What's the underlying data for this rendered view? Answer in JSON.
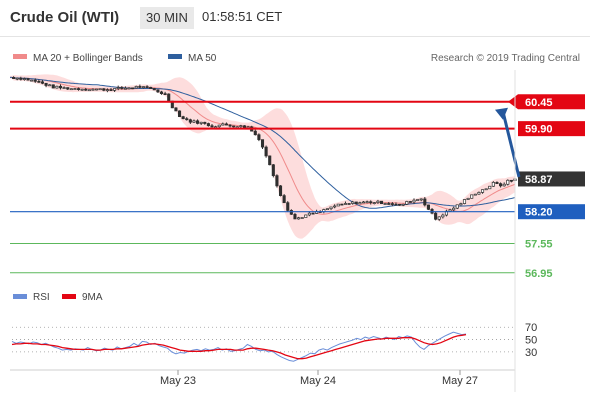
{
  "header": {
    "title": "Crude Oil (WTI)",
    "timeframe": "30 MIN",
    "time": "01:58:51 CET"
  },
  "legend": {
    "bb_label": "MA 20 + Bollinger Bands",
    "ma50_label": "MA 50",
    "source": "Research © 2019 Trading Central",
    "rsi_label": "RSI",
    "rsi_ma_label": "9MA"
  },
  "colors": {
    "candle": "#2f2f2f",
    "bollinger_fill": "#fdd9d9",
    "ma20": "#f08a8a",
    "ma50": "#2e5f9e",
    "resistance": "#e30613",
    "pivot": "#1f5fbf",
    "support": "#5cb85c",
    "current": "#333333",
    "arrow": "#24579c",
    "rsi": "#6a8ed8",
    "rsi_ma": "#e30613"
  },
  "chart_data": [
    {
      "type": "candlestick",
      "x_ticks": [
        "May 23",
        "May 24",
        "May 27"
      ],
      "ylim": [
        56.7,
        61.1
      ],
      "series": [
        {
          "name": "MA 20 + Bollinger Bands"
        },
        {
          "name": "MA 50"
        }
      ],
      "price_path": [
        [
          0,
          60.95
        ],
        [
          8,
          60.92
        ],
        [
          16,
          60.85
        ],
        [
          24,
          60.75
        ],
        [
          34,
          60.72
        ],
        [
          44,
          60.71
        ],
        [
          54,
          60.7
        ],
        [
          64,
          60.73
        ],
        [
          72,
          60.76
        ],
        [
          80,
          60.69
        ],
        [
          86,
          60.6
        ],
        [
          90,
          60.35
        ],
        [
          95,
          60.12
        ],
        [
          100,
          60.05
        ],
        [
          106,
          60.02
        ],
        [
          112,
          59.95
        ],
        [
          118,
          59.98
        ],
        [
          124,
          59.96
        ],
        [
          132,
          59.93
        ],
        [
          138,
          59.7
        ],
        [
          142,
          59.35
        ],
        [
          146,
          58.95
        ],
        [
          150,
          58.55
        ],
        [
          154,
          58.25
        ],
        [
          158,
          58.05
        ],
        [
          162,
          58.1
        ],
        [
          166,
          58.15
        ],
        [
          172,
          58.2
        ],
        [
          180,
          58.32
        ],
        [
          190,
          58.38
        ],
        [
          200,
          58.4
        ],
        [
          210,
          58.38
        ],
        [
          216,
          58.33
        ],
        [
          222,
          58.42
        ],
        [
          228,
          58.47
        ],
        [
          232,
          58.25
        ],
        [
          236,
          58.05
        ],
        [
          240,
          58.15
        ],
        [
          246,
          58.28
        ],
        [
          252,
          58.43
        ],
        [
          258,
          58.58
        ],
        [
          264,
          58.68
        ],
        [
          268,
          58.78
        ],
        [
          272,
          58.74
        ],
        [
          276,
          58.82
        ],
        [
          280,
          58.87
        ]
      ],
      "key_levels": [
        {
          "label": "60.45",
          "value": 60.45,
          "kind": "resistance"
        },
        {
          "label": "59.90",
          "value": 59.9,
          "kind": "resistance"
        },
        {
          "label": "58.87",
          "value": 58.87,
          "kind": "last"
        },
        {
          "label": "58.20",
          "value": 58.2,
          "kind": "pivot"
        },
        {
          "label": "57.55",
          "value": 57.55,
          "kind": "support"
        },
        {
          "label": "56.95",
          "value": 56.95,
          "kind": "support"
        }
      ]
    },
    {
      "type": "line",
      "y_ticks": [
        70,
        50,
        30
      ],
      "ylim": [
        12,
        85
      ],
      "series": [
        {
          "name": "RSI",
          "values": [
            47,
            44,
            46,
            45,
            43,
            46,
            45,
            42,
            44,
            41,
            38,
            36,
            33,
            34,
            33,
            35,
            34,
            33,
            37,
            34,
            32,
            33,
            36,
            34,
            33,
            38,
            35,
            37,
            39,
            44,
            40,
            47,
            46,
            42,
            44,
            40,
            38,
            36,
            30,
            27,
            29,
            28,
            31,
            33,
            34,
            32,
            35,
            33,
            34,
            37,
            33,
            35,
            31,
            32,
            34,
            36,
            42,
            39,
            34,
            32,
            33,
            30,
            31,
            26,
            22,
            19,
            16,
            15,
            18,
            21,
            24,
            28,
            27,
            33,
            35,
            33,
            37,
            40,
            43,
            45,
            47,
            49,
            52,
            50,
            54,
            52,
            55,
            53,
            51,
            54,
            52,
            50,
            55,
            53,
            56,
            54,
            45,
            38,
            34,
            40,
            44,
            48,
            52,
            56,
            59,
            62,
            60,
            58,
            59
          ]
        },
        {
          "name": "9MA",
          "values": [
            42,
            43,
            43,
            44,
            44,
            43,
            43,
            42,
            42,
            41,
            40,
            39,
            37,
            36,
            35,
            34,
            34,
            34,
            34,
            34,
            33,
            33,
            34,
            34,
            34,
            35,
            35,
            36,
            37,
            38,
            39,
            41,
            42,
            43,
            43,
            42,
            41,
            39,
            37,
            35,
            33,
            32,
            31,
            31,
            31,
            31,
            32,
            32,
            33,
            34,
            34,
            34,
            34,
            33,
            33,
            33,
            35,
            36,
            36,
            35,
            34,
            33,
            32,
            30,
            28,
            25,
            23,
            21,
            19,
            19,
            20,
            22,
            24,
            26,
            28,
            30,
            32,
            34,
            36,
            38,
            40,
            42,
            44,
            46,
            48,
            49,
            50,
            51,
            51,
            52,
            52,
            52,
            52,
            53,
            53,
            53,
            51,
            48,
            45,
            43,
            42,
            43,
            45,
            48,
            51,
            54,
            56,
            57,
            58
          ]
        }
      ]
    }
  ]
}
